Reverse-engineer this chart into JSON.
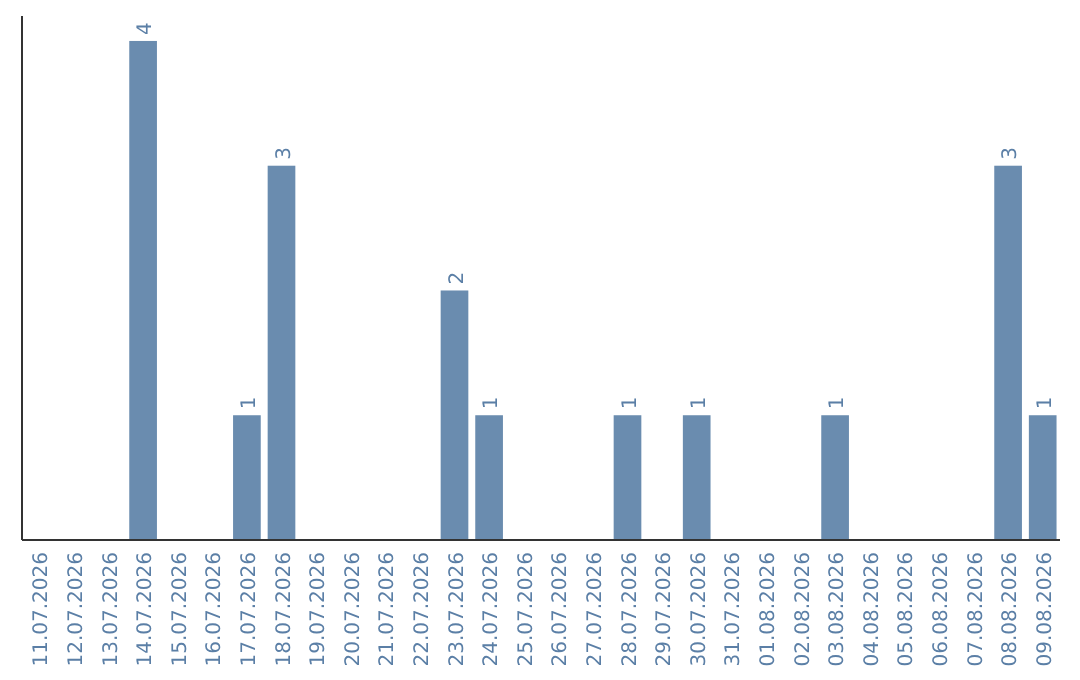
{
  "chart_data": {
    "type": "bar",
    "categories": [
      "11.07.2026",
      "12.07.2026",
      "13.07.2026",
      "14.07.2026",
      "15.07.2026",
      "16.07.2026",
      "17.07.2026",
      "18.07.2026",
      "19.07.2026",
      "20.07.2026",
      "21.07.2026",
      "22.07.2026",
      "23.07.2026",
      "24.07.2026",
      "25.07.2026",
      "26.07.2026",
      "27.07.2026",
      "28.07.2026",
      "29.07.2026",
      "30.07.2026",
      "31.07.2026",
      "01.08.2026",
      "02.08.2026",
      "03.08.2026",
      "04.08.2026",
      "05.08.2026",
      "06.08.2026",
      "07.08.2026",
      "08.08.2026",
      "09.08.2026"
    ],
    "values": [
      0,
      0,
      0,
      4,
      0,
      0,
      1,
      3,
      0,
      0,
      0,
      0,
      2,
      1,
      0,
      0,
      0,
      1,
      0,
      1,
      0,
      0,
      0,
      1,
      0,
      0,
      0,
      0,
      3,
      1
    ],
    "value_labels": [
      null,
      null,
      null,
      "4",
      null,
      null,
      "1",
      "3",
      null,
      null,
      null,
      null,
      "2",
      "1",
      null,
      null,
      null,
      "1",
      null,
      "1",
      null,
      null,
      null,
      "1",
      null,
      null,
      null,
      null,
      "3",
      "1"
    ],
    "color": "#6a8caf",
    "tick_labels": "x"
  }
}
